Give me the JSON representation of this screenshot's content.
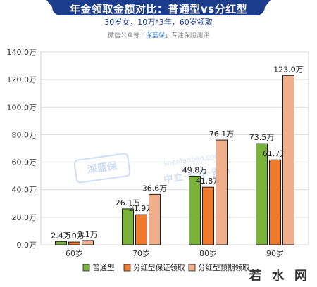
{
  "header": {
    "title": "年金领取金额对比：普通型vs分红型",
    "subtitle": "30岁女，10万*3年，60岁领取",
    "source_prefix": "微信公众号「",
    "source_name": "深蓝保",
    "source_suffix": "」专注保险测评"
  },
  "watermark": {
    "logo": "深蓝保",
    "url": "shenlanbao.com",
    "text": "中立·专业·省心"
  },
  "brand": "若 水 网",
  "colors": {
    "header": "#1c3d8c",
    "series": [
      "#7bb33a",
      "#ee7a2b",
      "#f2ae8b"
    ],
    "grid": "#d9d9d9"
  },
  "chart_data": {
    "type": "bar",
    "categories": [
      "60岁",
      "70岁",
      "80岁",
      "90岁"
    ],
    "series": [
      {
        "name": "普通型",
        "values": [
          2.4,
          26.1,
          49.8,
          73.5
        ],
        "labels": [
          "2.4万",
          "26.1万",
          "49.8万",
          "73.5万"
        ]
      },
      {
        "name": "分红型保证领取",
        "values": [
          2.0,
          21.9,
          41.8,
          61.7
        ],
        "labels": [
          "2.0万",
          "21.9万",
          "41.8万",
          "61.7万"
        ]
      },
      {
        "name": "分红型预期领取",
        "values": [
          3.1,
          36.6,
          76.1,
          123.0
        ],
        "labels": [
          "3.1万",
          "36.6万",
          "76.1万",
          "123.0万"
        ]
      }
    ],
    "yticks": [
      "0.0万",
      "20.0万",
      "40.0万",
      "60.0万",
      "80.0万",
      "100.0万",
      "120.0万",
      "140.0万"
    ],
    "ylim": [
      0,
      140
    ],
    "grid": true,
    "legend": "bottom"
  }
}
